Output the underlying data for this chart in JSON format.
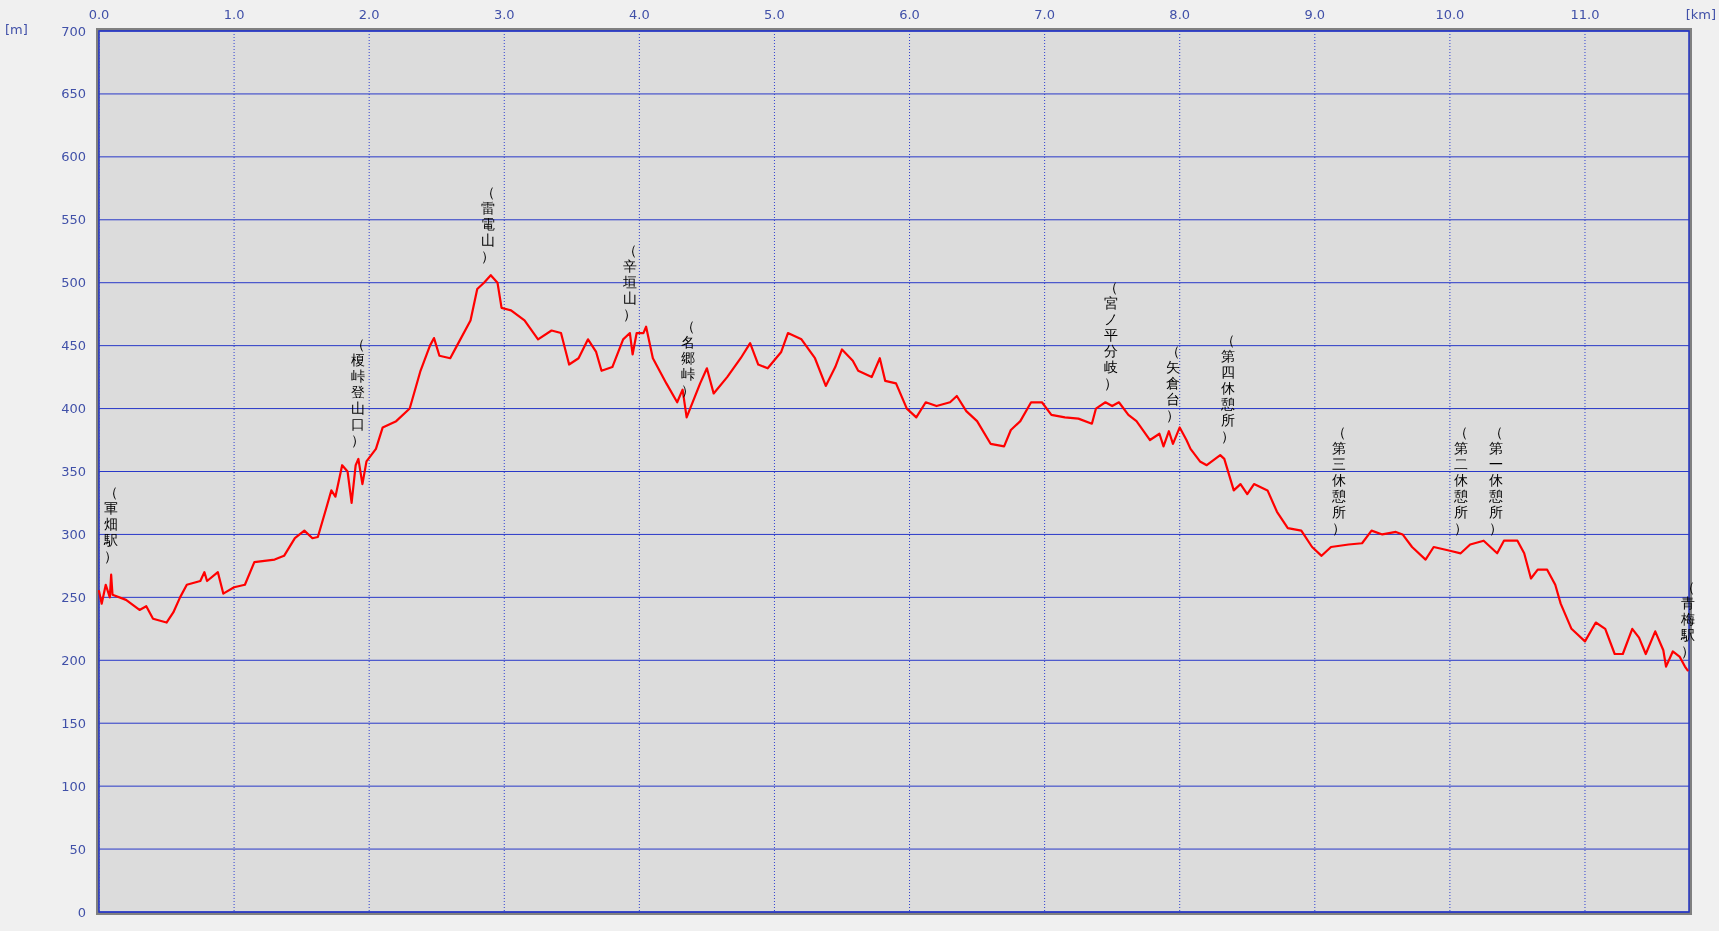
{
  "chart_data": {
    "type": "line",
    "xlabel": "[km]",
    "ylabel": "[m]",
    "xlim": [
      0,
      11.77
    ],
    "ylim": [
      0,
      700
    ],
    "xticks": [
      {
        "value": 0,
        "label": "0.0"
      },
      {
        "value": 1,
        "label": "1.0"
      },
      {
        "value": 2,
        "label": "2.0"
      },
      {
        "value": 3,
        "label": "3.0"
      },
      {
        "value": 4,
        "label": "4.0"
      },
      {
        "value": 5,
        "label": "5.0"
      },
      {
        "value": 6,
        "label": "6.0"
      },
      {
        "value": 7,
        "label": "7.0"
      },
      {
        "value": 8,
        "label": "8.0"
      },
      {
        "value": 9,
        "label": "9.0"
      },
      {
        "value": 10,
        "label": "10.0"
      },
      {
        "value": 11,
        "label": "11.0"
      }
    ],
    "yticks": [
      0,
      50,
      100,
      150,
      200,
      250,
      300,
      350,
      400,
      450,
      500,
      550,
      600,
      650,
      700
    ],
    "grid": true,
    "x": [
      0,
      0.02,
      0.05,
      0.08,
      0.09,
      0.1,
      0.2,
      0.3,
      0.35,
      0.4,
      0.5,
      0.55,
      0.6,
      0.65,
      0.75,
      0.78,
      0.8,
      0.88,
      0.92,
      1.0,
      1.08,
      1.15,
      1.3,
      1.37,
      1.45,
      1.52,
      1.58,
      1.62,
      1.68,
      1.72,
      1.75,
      1.8,
      1.84,
      1.87,
      1.9,
      1.92,
      1.95,
      1.98,
      2.05,
      2.1,
      2.2,
      2.3,
      2.38,
      2.45,
      2.48,
      2.52,
      2.6,
      2.65,
      2.75,
      2.8,
      2.85,
      2.9,
      2.95,
      2.98,
      3.05,
      3.15,
      3.25,
      3.35,
      3.42,
      3.48,
      3.55,
      3.62,
      3.68,
      3.72,
      3.8,
      3.88,
      3.93,
      3.95,
      3.98,
      4.03,
      4.05,
      4.1,
      4.2,
      4.28,
      4.32,
      4.35,
      4.45,
      4.5,
      4.55,
      4.65,
      4.75,
      4.82,
      4.88,
      4.95,
      5.05,
      5.1,
      5.2,
      5.3,
      5.38,
      5.45,
      5.5,
      5.58,
      5.62,
      5.72,
      5.78,
      5.82,
      5.9,
      5.98,
      6.05,
      6.12,
      6.2,
      6.3,
      6.35,
      6.42,
      6.5,
      6.6,
      6.7,
      6.75,
      6.82,
      6.9,
      6.98,
      7.05,
      7.15,
      7.25,
      7.35,
      7.38,
      7.45,
      7.5,
      7.55,
      7.62,
      7.68,
      7.78,
      7.85,
      7.88,
      7.92,
      7.95,
      8.0,
      8.05,
      8.08,
      8.15,
      8.2,
      8.3,
      8.33,
      8.4,
      8.45,
      8.5,
      8.55,
      8.65,
      8.72,
      8.8,
      8.9,
      8.98,
      9.05,
      9.12,
      9.25,
      9.35,
      9.42,
      9.5,
      9.6,
      9.65,
      9.72,
      9.82,
      9.88,
      10.0,
      10.08,
      10.15,
      10.25,
      10.3,
      10.35,
      10.4,
      10.5,
      10.55,
      10.6,
      10.65,
      10.72,
      10.78,
      10.82,
      10.9,
      11.0,
      11.08,
      11.15,
      11.22,
      11.28,
      11.35,
      11.4,
      11.45,
      11.52,
      11.58,
      11.6,
      11.65,
      11.7,
      11.74,
      11.76
    ],
    "series": [
      {
        "color": "#ff0000",
        "values": [
          255,
          245,
          260,
          250,
          268,
          252,
          248,
          240,
          243,
          233,
          230,
          238,
          250,
          260,
          263,
          270,
          263,
          270,
          253,
          258,
          260,
          278,
          280,
          283,
          297,
          303,
          297,
          298,
          320,
          335,
          330,
          355,
          350,
          325,
          355,
          360,
          340,
          358,
          368,
          385,
          390,
          400,
          430,
          450,
          456,
          442,
          440,
          450,
          470,
          495,
          500,
          506,
          500,
          480,
          478,
          470,
          455,
          462,
          460,
          435,
          440,
          455,
          445,
          430,
          433,
          455,
          460,
          443,
          460,
          460,
          465,
          440,
          420,
          405,
          415,
          393,
          420,
          432,
          412,
          425,
          440,
          452,
          435,
          432,
          445,
          460,
          455,
          440,
          418,
          433,
          447,
          438,
          430,
          425,
          440,
          422,
          420,
          400,
          393,
          405,
          402,
          405,
          410,
          398,
          390,
          372,
          370,
          383,
          390,
          405,
          405,
          395,
          393,
          392,
          388,
          400,
          405,
          402,
          405,
          395,
          390,
          375,
          380,
          370,
          382,
          372,
          385,
          375,
          368,
          358,
          355,
          363,
          360,
          335,
          340,
          332,
          340,
          335,
          318,
          305,
          303,
          290,
          283,
          290,
          292,
          293,
          303,
          300,
          302,
          300,
          290,
          280,
          290,
          287,
          285,
          292,
          295,
          290,
          285,
          295,
          295,
          285,
          265,
          272,
          272,
          260,
          245,
          225,
          215,
          230,
          225,
          205,
          205,
          225,
          218,
          205,
          223,
          208,
          195,
          207,
          203,
          195,
          192
        ]
      }
    ],
    "annotations": [
      {
        "text": "（軍畑駅）",
        "x": 0.09,
        "y": 268
      },
      {
        "text": "（榎峠登山口）",
        "x": 1.92,
        "y": 360
      },
      {
        "text": "（雷電山）",
        "x": 2.88,
        "y": 506
      },
      {
        "text": "（辛垣山）",
        "x": 3.93,
        "y": 460
      },
      {
        "text": "（名郷峠）",
        "x": 4.36,
        "y": 400
      },
      {
        "text": "（宮ノ平分岐）",
        "x": 7.49,
        "y": 405
      },
      {
        "text": "（矢倉台）",
        "x": 7.95,
        "y": 380
      },
      {
        "text": "（第四休憩所）",
        "x": 8.36,
        "y": 363
      },
      {
        "text": "（第三休憩所）",
        "x": 9.18,
        "y": 290
      },
      {
        "text": "（第二休憩所）",
        "x": 10.08,
        "y": 290
      },
      {
        "text": "（第一休憩所）",
        "x": 10.34,
        "y": 290
      },
      {
        "text": "（青梅駅）",
        "x": 11.76,
        "y": 192
      }
    ]
  }
}
